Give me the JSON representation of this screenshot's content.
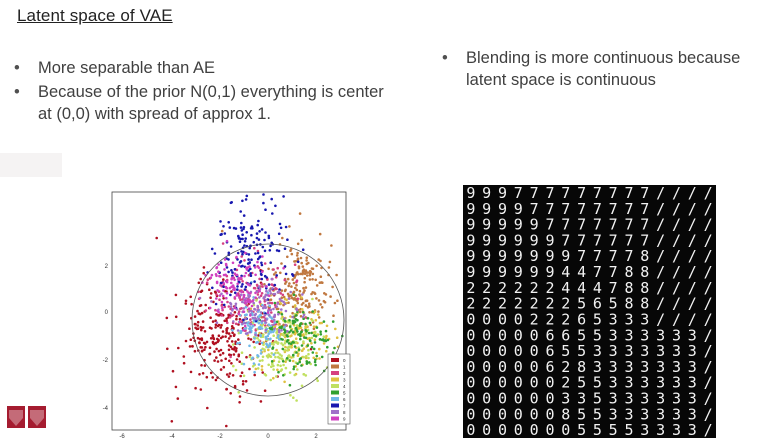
{
  "slide": {
    "title": "Latent space of VAE",
    "left_bullets": [
      "More separable than AE",
      "Because of the prior N(0,1) everything is center at (0,0) with spread of approx 1."
    ],
    "right_bullets": [
      "Blending is more continuous because latent space is continuous"
    ]
  },
  "scatter": {
    "x_ticks": [
      "-6",
      "-4",
      "-2",
      "0",
      "2"
    ],
    "y_ticks": [
      "2",
      "0",
      "-2",
      "-4"
    ],
    "legend_labels": [
      "0",
      "1",
      "2",
      "3",
      "4",
      "5",
      "6",
      "7",
      "8",
      "9"
    ],
    "class_colors": [
      "#b01020",
      "#c07840",
      "#d64080",
      "#e0c040",
      "#c0e060",
      "#30a030",
      "#70b8e8",
      "#1818b0",
      "#a070c8",
      "#d040c0"
    ]
  },
  "digit_grid": {
    "rows": [
      "999777777777////",
      "999977777777////",
      "999997777777////",
      "999999777777////",
      "999999977778////",
      "999999447788////",
      "222222444788////",
      "222222256588////",
      "000022265333////",
      "000006655333333/",
      "000006553333333/",
      "000006283333333/",
      "000000255333333/",
      "000000335333333/",
      "000000855333333/",
      "000000055553333/"
    ]
  },
  "logo": {
    "icon": "university-shield-logo"
  }
}
